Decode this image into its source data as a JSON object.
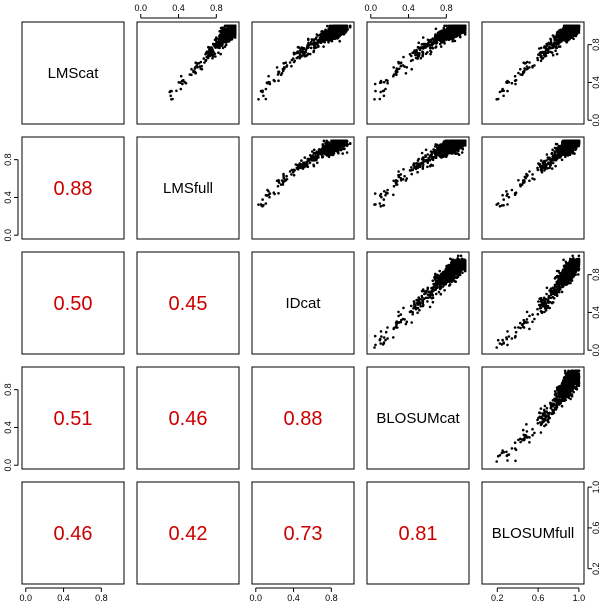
{
  "chart_data": {
    "type": "scatter",
    "variables": [
      "LMScat",
      "LMSfull",
      "IDcat",
      "BLOSUMcat",
      "BLOSUMfull"
    ],
    "correlations": [
      {
        "row": 1,
        "col": 0,
        "value": "0.88"
      },
      {
        "row": 2,
        "col": 0,
        "value": "0.50"
      },
      {
        "row": 2,
        "col": 1,
        "value": "0.45"
      },
      {
        "row": 3,
        "col": 0,
        "value": "0.51"
      },
      {
        "row": 3,
        "col": 1,
        "value": "0.46"
      },
      {
        "row": 3,
        "col": 2,
        "value": "0.88"
      },
      {
        "row": 4,
        "col": 0,
        "value": "0.46"
      },
      {
        "row": 4,
        "col": 1,
        "value": "0.42"
      },
      {
        "row": 4,
        "col": 2,
        "value": "0.73"
      },
      {
        "row": 4,
        "col": 3,
        "value": "0.81"
      }
    ],
    "axes": {
      "default": {
        "range": [
          -0.04,
          1.04
        ],
        "ticks": [
          0.0,
          0.4,
          0.8
        ],
        "tick_labels": [
          "0.0",
          "0.4",
          "0.8"
        ]
      },
      "BLOSUMfull_y": {
        "range": [
          0.05,
          1.05
        ],
        "ticks": [
          0.2,
          0.6,
          1.0
        ],
        "tick_labels": [
          "0.2",
          "0.6",
          "1.0"
        ]
      },
      "BLOSUMfull_x": {
        "range": [
          0.05,
          1.05
        ],
        "ticks": [
          0.2,
          0.6,
          1.0
        ],
        "tick_labels": [
          "0.2",
          "0.6",
          "1.0"
        ]
      }
    },
    "top_axis_columns": [
      1,
      3
    ],
    "right_axis_rows": [
      0,
      2,
      4
    ],
    "bottom_axis_columns": [
      0,
      2,
      4
    ],
    "left_axis_rows": [
      1,
      3
    ],
    "grid": false,
    "colors": {
      "points": "#000000",
      "correlation_text": "#cc0000",
      "frame": "#000000"
    }
  }
}
